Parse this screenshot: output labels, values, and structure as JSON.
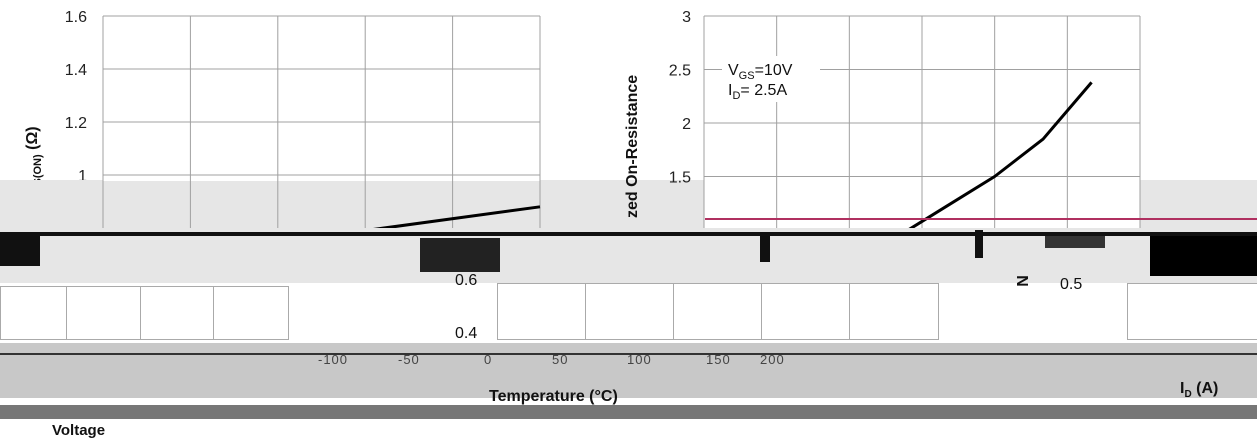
{
  "chart_data": [
    {
      "type": "line",
      "title": "",
      "xlabel": "",
      "ylabel": "RDS(ON) (Ω)",
      "ylabel_main": "R",
      "ylabel_sub": "DS(ON)",
      "ylabel_suffix": " (Ω)",
      "ylim": [
        0.8,
        1.6
      ],
      "y_ticks": [
        1.6,
        1.4,
        1.2,
        1
      ],
      "y_tick_labels": [
        "1.6",
        "1.4",
        "1.2",
        "1"
      ],
      "grid": true,
      "series": [
        {
          "x": [
            3.05,
            5.5
          ],
          "y": [
            0.78,
            0.88
          ]
        }
      ]
    },
    {
      "type": "line",
      "title": "",
      "xlabel": "",
      "ylabel": "zed On-Resistance",
      "ylim": [
        1.0,
        3.0
      ],
      "y_ticks": [
        3,
        2.5,
        2,
        1.5
      ],
      "y_tick_labels": [
        "3",
        "2.5",
        "2",
        "1.5"
      ],
      "grid": true,
      "annotation": {
        "line1": "VGS=10V",
        "line2": "ID= 2.5A"
      },
      "annotation_parts": {
        "l1_main": "V",
        "l1_sub": "GS",
        "l1_rest": "=10V",
        "l2_main": "I",
        "l2_sub": "D",
        "l2_rest": "= 2.5A"
      },
      "series": [
        {
          "x": [
            50,
            75,
            100,
            125,
            150
          ],
          "y": [
            0.94,
            1.22,
            1.5,
            1.85,
            2.38
          ]
        }
      ]
    }
  ],
  "lower_fragments": {
    "ticks_mid": [
      "0.6",
      "0.4"
    ],
    "tick_right": "0.5",
    "x_ticks_mid": [
      "-100",
      "-50",
      "0",
      "50",
      "100",
      "150",
      "200"
    ],
    "temperature_label": "Temperature (°C)",
    "id_label": "ID (A)",
    "id_label_main": "I",
    "id_label_sub": "D",
    "id_label_rest": " (A)",
    "voltage_label": "Voltage",
    "z_label": "N"
  },
  "colors": {
    "grid": "#a0a0a0",
    "line": "#000000",
    "gray_band": "#e6e6e6",
    "magenta_line": "#b03060"
  }
}
